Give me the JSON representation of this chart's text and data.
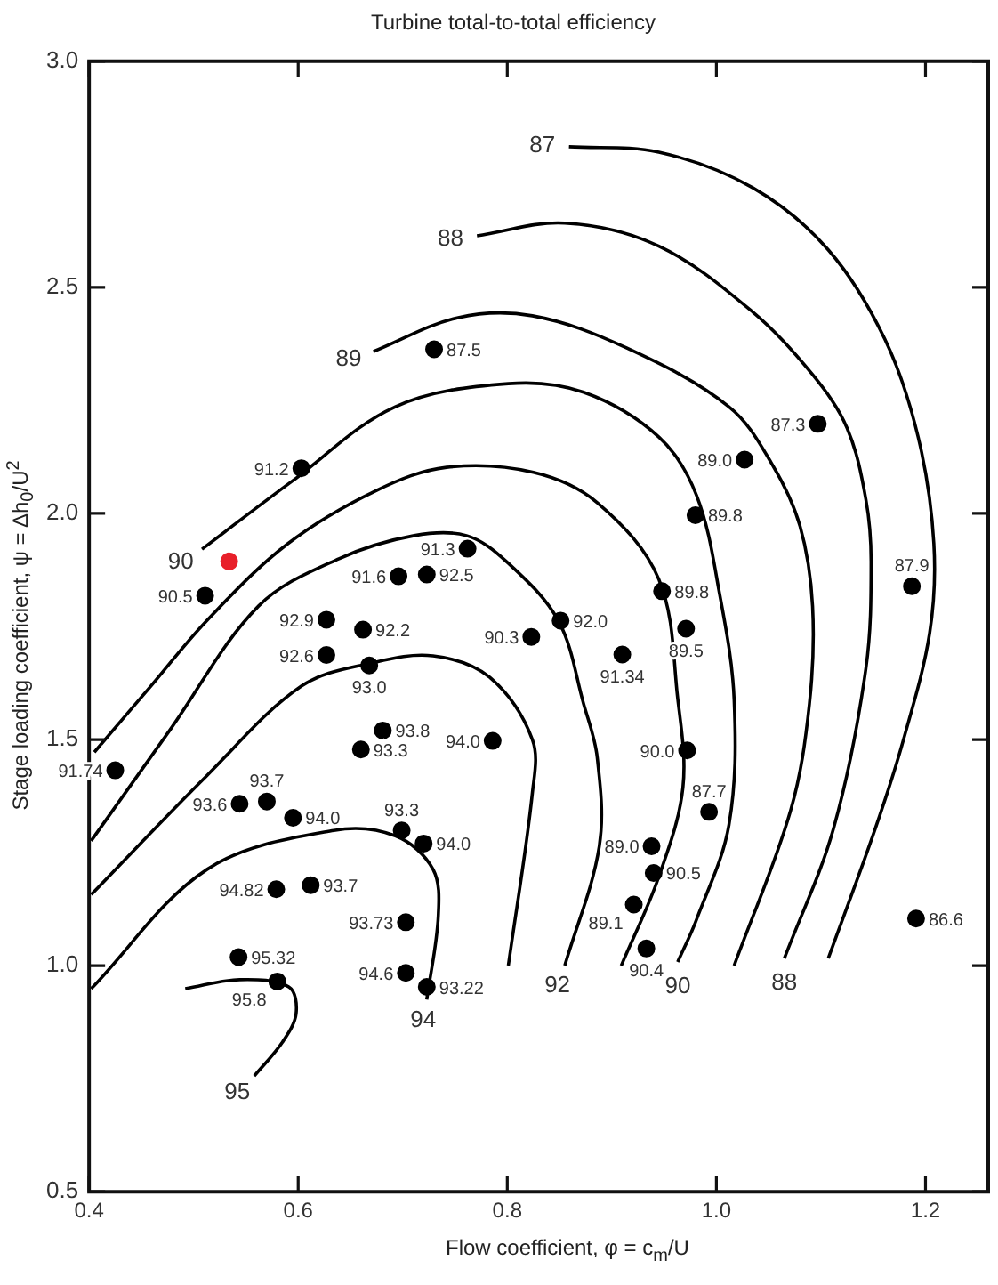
{
  "chart_data": {
    "type": "scatter",
    "title": "Turbine total-to-total efficiency",
    "xlabel": "Flow coefficient, φ = c$_{m}$/U",
    "ylabel": "Stage loading coefficient, ψ = Δh$_{0}$/U$^{2}$",
    "grid": false,
    "legend": false,
    "xlim": [
      0.4,
      1.26
    ],
    "xticks": [
      {
        "value": 0.4,
        "label": "0.4"
      },
      {
        "value": 0.6,
        "label": "0.6"
      },
      {
        "value": 0.8,
        "label": "0.8"
      },
      {
        "value": 1.0,
        "label": "1.0"
      },
      {
        "value": 1.2,
        "label": "1.2"
      }
    ],
    "ylim": [
      0.5,
      3.0
    ],
    "yticks": [
      {
        "value": 0.5,
        "label": "0.5"
      },
      {
        "value": 1.0,
        "label": "1.0"
      },
      {
        "value": 1.5,
        "label": "1.5"
      },
      {
        "value": 2.0,
        "label": "2.0"
      },
      {
        "value": 2.5,
        "label": "2.5"
      },
      {
        "value": 3.0,
        "label": "3.0"
      }
    ],
    "series": [
      {
        "type": "line",
        "name": "87",
        "marker": "none",
        "color": "#000000",
        "x": [
          0.859,
          0.945,
          1.035,
          1.107,
          1.161,
          1.193,
          1.208,
          1.204,
          1.179,
          1.152,
          1.107
        ],
        "values": [
          2.811,
          2.799,
          2.72,
          2.583,
          2.386,
          2.169,
          1.933,
          1.736,
          1.5,
          1.303,
          1.016
        ]
      },
      {
        "type": "line",
        "name": "88",
        "marker": "none",
        "color": "#000000",
        "x": [
          0.771,
          0.855,
          0.945,
          1.035,
          1.092,
          1.125,
          1.143,
          1.148,
          1.143,
          1.112,
          1.065
        ],
        "values": [
          2.614,
          2.642,
          2.591,
          2.445,
          2.307,
          2.189,
          2.031,
          1.894,
          1.657,
          1.303,
          1.016
        ]
      },
      {
        "type": "line",
        "name": "89",
        "marker": "none",
        "color": "#000000",
        "x": [
          0.672,
          0.753,
          0.824,
          0.914,
          1.012,
          1.053,
          1.08,
          1.092,
          1.089,
          1.071,
          1.017
        ],
        "values": [
          2.358,
          2.433,
          2.437,
          2.366,
          2.236,
          2.11,
          1.972,
          1.795,
          1.579,
          1.343,
          1.0
        ]
      },
      {
        "type": "line",
        "name": "90",
        "marker": "none",
        "color": "#000000",
        "x": [
          0.508,
          0.594,
          0.693,
          0.801,
          0.873,
          0.945,
          0.981,
          1.003,
          1.017,
          1.012,
          0.981,
          0.963
        ],
        "values": [
          1.921,
          2.071,
          2.236,
          2.287,
          2.268,
          2.169,
          2.04,
          1.823,
          1.587,
          1.311,
          1.102,
          1.008
        ]
      },
      {
        "type": "line",
        "marker": "none",
        "color": "#000000",
        "x": [
          0.405,
          0.459,
          0.513,
          0.59,
          0.675,
          0.742,
          0.825,
          0.886,
          0.945,
          0.963,
          0.968,
          0.945,
          0.909
        ],
        "values": [
          1.472,
          1.618,
          1.764,
          1.933,
          2.051,
          2.102,
          2.091,
          2.024,
          1.854,
          1.591,
          1.394,
          1.197,
          1.0
        ]
      },
      {
        "type": "line",
        "name": "92",
        "marker": "none",
        "color": "#000000",
        "x": [
          0.855,
          0.888,
          0.886,
          0.873,
          0.849,
          0.8,
          0.761,
          0.711,
          0.639,
          0.562,
          0.477,
          0.402
        ],
        "values": [
          1.0,
          1.264,
          1.461,
          1.579,
          1.762,
          1.892,
          1.951,
          1.951,
          1.9,
          1.795,
          1.52,
          1.276
        ]
      },
      {
        "type": "line",
        "marker": "none",
        "color": "#000000",
        "x": [
          0.402,
          0.513,
          0.603,
          0.67,
          0.729,
          0.783,
          0.824,
          0.824,
          0.801
        ],
        "values": [
          1.157,
          1.421,
          1.618,
          1.669,
          1.685,
          1.638,
          1.5,
          1.382,
          1.0
        ]
      },
      {
        "type": "line",
        "name": "94",
        "marker": "none",
        "color": "#000000",
        "x": [
          0.723,
          0.734,
          0.729,
          0.693,
          0.634,
          0.513,
          0.402
        ],
        "values": [
          0.925,
          1.11,
          1.213,
          1.287,
          1.299,
          1.213,
          0.949
        ]
      },
      {
        "type": "line",
        "name": "95",
        "marker": "none",
        "color": "#000000",
        "x": [
          0.558,
          0.585,
          0.598,
          0.591,
          0.544,
          0.492
        ],
        "values": [
          0.756,
          0.831,
          0.894,
          0.953,
          0.969,
          0.949
        ]
      },
      {
        "type": "scatter",
        "marker": "circle",
        "color": "#000000",
        "x": [
          0.73,
          0.603,
          0.511,
          0.762,
          0.696,
          0.723,
          0.627,
          0.662,
          0.627,
          0.668,
          0.681,
          0.66,
          0.425,
          0.544,
          0.57,
          0.595,
          0.699,
          0.72,
          0.579,
          0.612,
          0.703,
          0.543,
          0.58,
          0.703,
          0.723,
          0.786,
          0.851,
          0.823,
          0.91,
          0.948,
          0.971,
          0.972,
          0.993,
          0.938,
          0.94,
          0.921,
          0.933,
          1.191,
          1.187,
          1.097,
          1.027,
          0.98
        ],
        "values": [
          2.363,
          2.1,
          1.818,
          1.922,
          1.861,
          1.865,
          1.765,
          1.743,
          1.687,
          1.664,
          1.52,
          1.478,
          1.432,
          1.358,
          1.363,
          1.327,
          1.299,
          1.27,
          1.169,
          1.178,
          1.096,
          1.019,
          0.965,
          0.984,
          0.953,
          1.497,
          1.763,
          1.727,
          1.688,
          1.828,
          1.745,
          1.476,
          1.34,
          1.264,
          1.205,
          1.135,
          1.038,
          1.104,
          1.839,
          2.198,
          2.119,
          1.996
        ]
      },
      {
        "type": "scatter",
        "marker": "circle",
        "color": "#e8202a",
        "x": [
          0.534
        ],
        "values": [
          1.894
        ]
      }
    ],
    "annotations": [
      {
        "text": "87.5",
        "x": 0.73,
        "y": 2.363
      },
      {
        "text": "91.2",
        "x": 0.603,
        "y": 2.1
      },
      {
        "text": "90.5",
        "x": 0.511,
        "y": 1.818
      },
      {
        "text": "91.3",
        "x": 0.762,
        "y": 1.922
      },
      {
        "text": "91.6",
        "x": 0.696,
        "y": 1.861
      },
      {
        "text": "92.5",
        "x": 0.723,
        "y": 1.865
      },
      {
        "text": "92.9",
        "x": 0.627,
        "y": 1.765
      },
      {
        "text": "92.2",
        "x": 0.662,
        "y": 1.743
      },
      {
        "text": "92.6",
        "x": 0.627,
        "y": 1.687
      },
      {
        "text": "93.0",
        "x": 0.668,
        "y": 1.664
      },
      {
        "text": "93.8",
        "x": 0.681,
        "y": 1.52
      },
      {
        "text": "93.3",
        "x": 0.66,
        "y": 1.478
      },
      {
        "text": "91.74",
        "x": 0.425,
        "y": 1.432
      },
      {
        "text": "93.6",
        "x": 0.544,
        "y": 1.358
      },
      {
        "text": "93.7",
        "x": 0.57,
        "y": 1.363
      },
      {
        "text": "94.0",
        "x": 0.595,
        "y": 1.327
      },
      {
        "text": "93.3",
        "x": 0.699,
        "y": 1.299
      },
      {
        "text": "94.0",
        "x": 0.72,
        "y": 1.27
      },
      {
        "text": "94.82",
        "x": 0.579,
        "y": 1.169
      },
      {
        "text": "93.7",
        "x": 0.612,
        "y": 1.178
      },
      {
        "text": "93.73",
        "x": 0.703,
        "y": 1.096
      },
      {
        "text": "95.32",
        "x": 0.543,
        "y": 1.019
      },
      {
        "text": "95.8",
        "x": 0.58,
        "y": 0.965
      },
      {
        "text": "94.6",
        "x": 0.703,
        "y": 0.984
      },
      {
        "text": "93.22",
        "x": 0.723,
        "y": 0.953
      },
      {
        "text": "94.0",
        "x": 0.786,
        "y": 1.497
      },
      {
        "text": "92.0",
        "x": 0.851,
        "y": 1.763
      },
      {
        "text": "90.3",
        "x": 0.823,
        "y": 1.727
      },
      {
        "text": "91.34",
        "x": 0.91,
        "y": 1.688
      },
      {
        "text": "89.8",
        "x": 0.948,
        "y": 1.828
      },
      {
        "text": "89.5",
        "x": 0.971,
        "y": 1.745
      },
      {
        "text": "90.0",
        "x": 0.972,
        "y": 1.476
      },
      {
        "text": "87.7",
        "x": 0.993,
        "y": 1.34
      },
      {
        "text": "89.0",
        "x": 0.938,
        "y": 1.264
      },
      {
        "text": "90.5",
        "x": 0.94,
        "y": 1.205
      },
      {
        "text": "89.1",
        "x": 0.921,
        "y": 1.135
      },
      {
        "text": "90.4",
        "x": 0.933,
        "y": 1.038
      },
      {
        "text": "86.6",
        "x": 1.191,
        "y": 1.104
      },
      {
        "text": "87.9",
        "x": 1.187,
        "y": 1.839
      },
      {
        "text": "87.3",
        "x": 1.097,
        "y": 2.198
      },
      {
        "text": "89.0",
        "x": 1.027,
        "y": 2.119
      },
      {
        "text": "89.8",
        "x": 0.98,
        "y": 1.996
      },
      {
        "text": "88",
        "x": 1.065,
        "y": 1.016
      },
      {
        "text": "90",
        "x": 0.963,
        "y": 1.008
      }
    ]
  }
}
